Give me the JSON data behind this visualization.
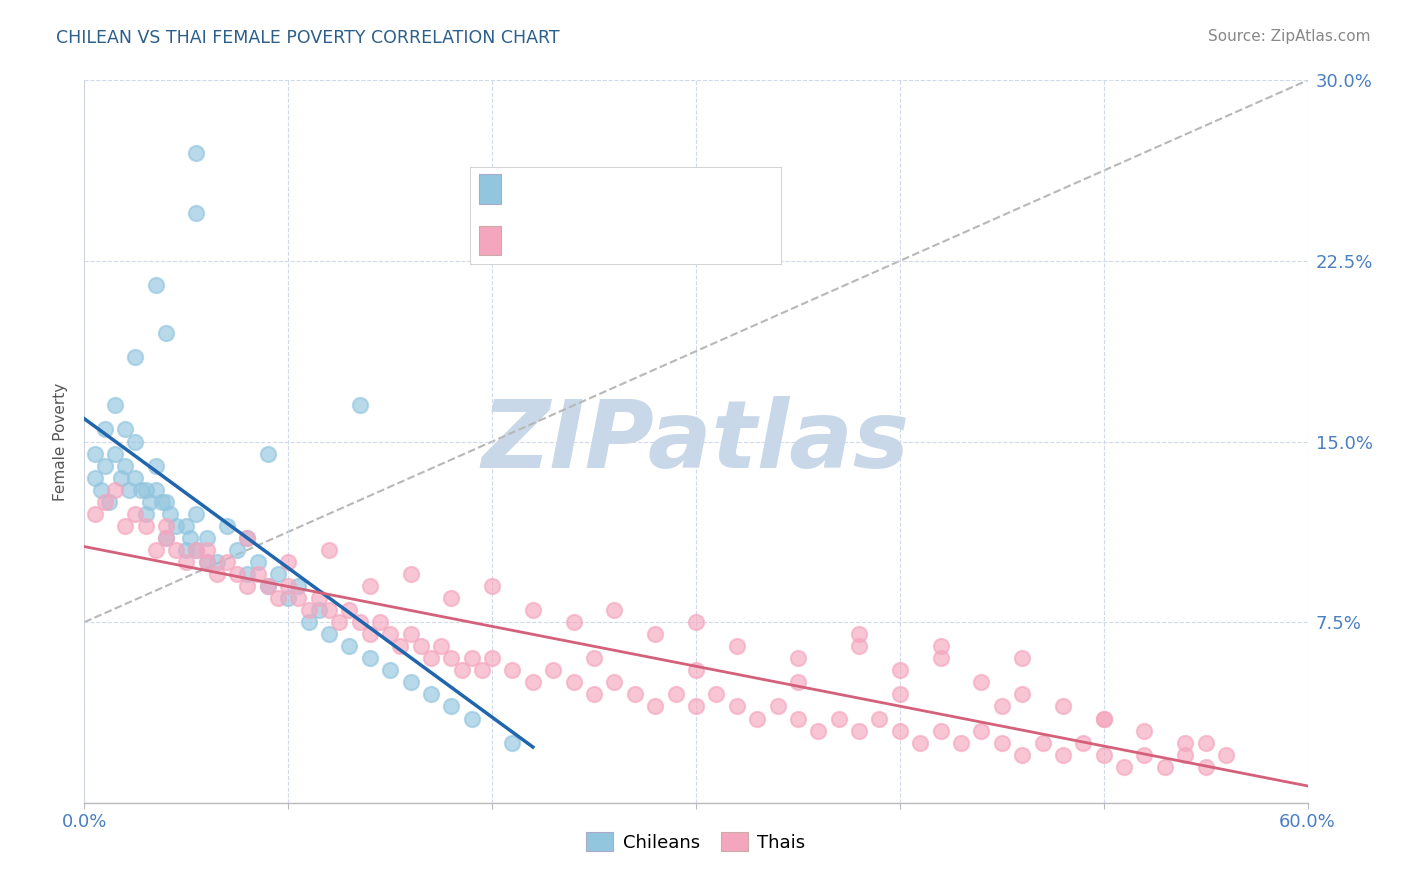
{
  "title": "CHILEAN VS THAI FEMALE POVERTY CORRELATION CHART",
  "source": "Source: ZipAtlas.com",
  "ylabel": "Female Poverty",
  "xlim": [
    0.0,
    0.6
  ],
  "ylim": [
    0.0,
    0.3
  ],
  "ytick_vals": [
    0.0,
    0.075,
    0.15,
    0.225,
    0.3
  ],
  "ytick_labels_right": [
    "",
    "7.5%",
    "15.0%",
    "22.5%",
    "30.0%"
  ],
  "xtick_vals": [
    0.0,
    0.1,
    0.2,
    0.3,
    0.4,
    0.5,
    0.6
  ],
  "xtick_labels": [
    "0.0%",
    "",
    "",
    "",
    "",
    "",
    "60.0%"
  ],
  "chilean_color": "#92c5de",
  "thai_color": "#f4a6be",
  "chilean_line_color": "#2166ac",
  "thai_line_color": "#d4607a",
  "gray_dash_color": "#b8b8b8",
  "tick_color": "#4a7fc1",
  "title_color": "#2c5f8a",
  "watermark_color": "#c8d8e8",
  "legend_text_color": "#2c6aad",
  "legend_r_color": "#2c6aad",
  "legend_n_color": "#e05050",
  "figsize": [
    14.06,
    8.92
  ],
  "dpi": 100,
  "chilean_x": [
    0.005,
    0.005,
    0.008,
    0.01,
    0.01,
    0.012,
    0.015,
    0.015,
    0.018,
    0.02,
    0.02,
    0.022,
    0.025,
    0.025,
    0.028,
    0.03,
    0.03,
    0.032,
    0.035,
    0.035,
    0.038,
    0.04,
    0.04,
    0.042,
    0.045,
    0.05,
    0.05,
    0.052,
    0.055,
    0.055,
    0.06,
    0.06,
    0.065,
    0.07,
    0.075,
    0.08,
    0.08,
    0.085,
    0.09,
    0.095,
    0.1,
    0.105,
    0.11,
    0.115,
    0.12,
    0.13,
    0.14,
    0.15,
    0.16,
    0.17,
    0.18,
    0.19,
    0.21
  ],
  "chilean_y": [
    0.135,
    0.145,
    0.13,
    0.14,
    0.155,
    0.125,
    0.145,
    0.165,
    0.135,
    0.14,
    0.155,
    0.13,
    0.135,
    0.15,
    0.13,
    0.12,
    0.13,
    0.125,
    0.13,
    0.14,
    0.125,
    0.11,
    0.125,
    0.12,
    0.115,
    0.105,
    0.115,
    0.11,
    0.105,
    0.12,
    0.1,
    0.11,
    0.1,
    0.115,
    0.105,
    0.095,
    0.11,
    0.1,
    0.09,
    0.095,
    0.085,
    0.09,
    0.075,
    0.08,
    0.07,
    0.065,
    0.06,
    0.055,
    0.05,
    0.045,
    0.04,
    0.035,
    0.025
  ],
  "chilean_outliers_x": [
    0.035,
    0.055,
    0.055,
    0.025,
    0.04,
    0.09,
    0.135
  ],
  "chilean_outliers_y": [
    0.215,
    0.245,
    0.27,
    0.185,
    0.195,
    0.145,
    0.165
  ],
  "thai_x": [
    0.005,
    0.01,
    0.015,
    0.02,
    0.025,
    0.03,
    0.035,
    0.04,
    0.045,
    0.05,
    0.055,
    0.06,
    0.065,
    0.07,
    0.075,
    0.08,
    0.085,
    0.09,
    0.095,
    0.1,
    0.105,
    0.11,
    0.115,
    0.12,
    0.125,
    0.13,
    0.135,
    0.14,
    0.145,
    0.15,
    0.155,
    0.16,
    0.165,
    0.17,
    0.175,
    0.18,
    0.185,
    0.19,
    0.195,
    0.2,
    0.21,
    0.22,
    0.23,
    0.24,
    0.25,
    0.26,
    0.27,
    0.28,
    0.29,
    0.3,
    0.31,
    0.32,
    0.33,
    0.34,
    0.35,
    0.36,
    0.37,
    0.38,
    0.39,
    0.4,
    0.41,
    0.42,
    0.43,
    0.44,
    0.45,
    0.46,
    0.47,
    0.48,
    0.49,
    0.5,
    0.51,
    0.52,
    0.53,
    0.54,
    0.55,
    0.04,
    0.06,
    0.08,
    0.1,
    0.12,
    0.14,
    0.16,
    0.18,
    0.2,
    0.22,
    0.24,
    0.26,
    0.28,
    0.3,
    0.32,
    0.35,
    0.38,
    0.4,
    0.42,
    0.44,
    0.46,
    0.48,
    0.5,
    0.52,
    0.54,
    0.56,
    0.25,
    0.3,
    0.35,
    0.4,
    0.45,
    0.5,
    0.55,
    0.38,
    0.42,
    0.46
  ],
  "thai_y": [
    0.12,
    0.125,
    0.13,
    0.115,
    0.12,
    0.115,
    0.105,
    0.11,
    0.105,
    0.1,
    0.105,
    0.1,
    0.095,
    0.1,
    0.095,
    0.09,
    0.095,
    0.09,
    0.085,
    0.09,
    0.085,
    0.08,
    0.085,
    0.08,
    0.075,
    0.08,
    0.075,
    0.07,
    0.075,
    0.07,
    0.065,
    0.07,
    0.065,
    0.06,
    0.065,
    0.06,
    0.055,
    0.06,
    0.055,
    0.06,
    0.055,
    0.05,
    0.055,
    0.05,
    0.045,
    0.05,
    0.045,
    0.04,
    0.045,
    0.04,
    0.045,
    0.04,
    0.035,
    0.04,
    0.035,
    0.03,
    0.035,
    0.03,
    0.035,
    0.03,
    0.025,
    0.03,
    0.025,
    0.03,
    0.025,
    0.02,
    0.025,
    0.02,
    0.025,
    0.02,
    0.015,
    0.02,
    0.015,
    0.02,
    0.015,
    0.115,
    0.105,
    0.11,
    0.1,
    0.105,
    0.09,
    0.095,
    0.085,
    0.09,
    0.08,
    0.075,
    0.08,
    0.07,
    0.075,
    0.065,
    0.06,
    0.065,
    0.055,
    0.06,
    0.05,
    0.045,
    0.04,
    0.035,
    0.03,
    0.025,
    0.02,
    0.06,
    0.055,
    0.05,
    0.045,
    0.04,
    0.035,
    0.025,
    0.07,
    0.065,
    0.06
  ]
}
